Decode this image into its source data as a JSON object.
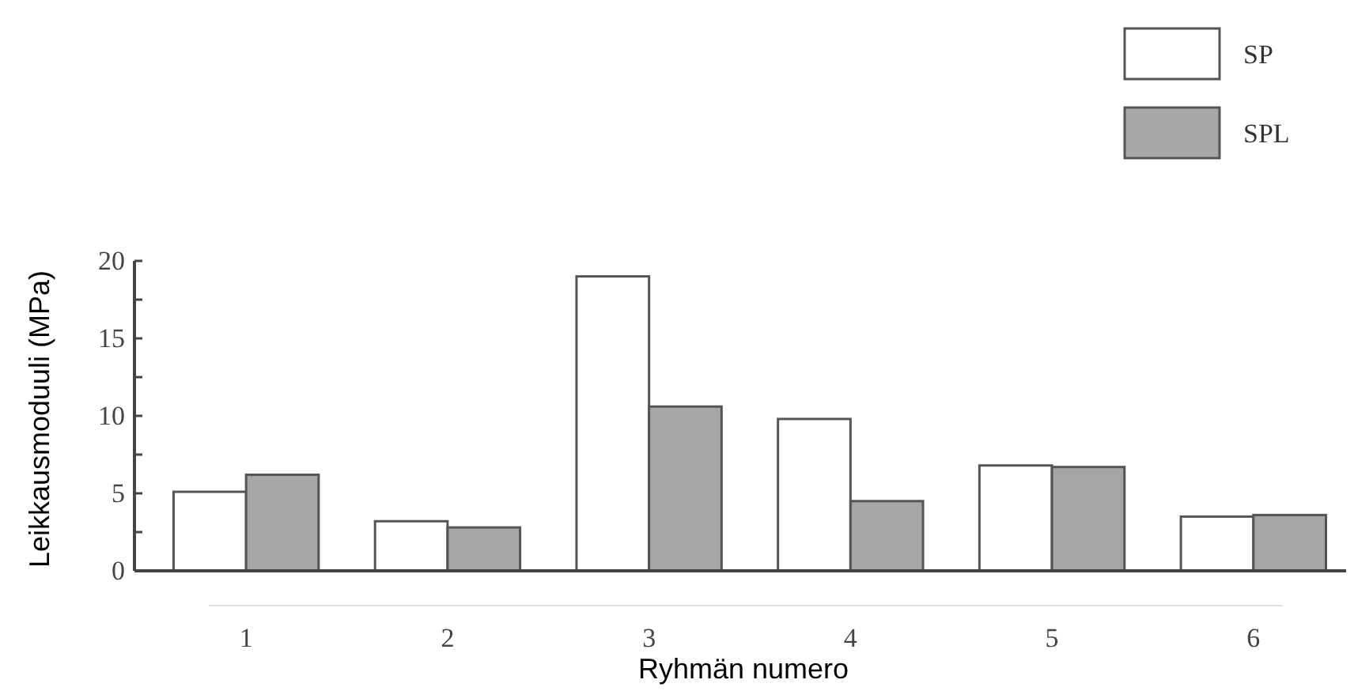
{
  "chart_data": {
    "type": "bar",
    "xlabel": "Ryhmän numero",
    "ylabel": "Leikkausmoduuli (MPa)",
    "categories": [
      "1",
      "2",
      "3",
      "4",
      "5",
      "6"
    ],
    "series": [
      {
        "name": "SP",
        "color": "#ffffff",
        "values": [
          5.1,
          3.2,
          19.0,
          9.8,
          6.8,
          3.5
        ]
      },
      {
        "name": "SPL",
        "color": "#a6a6a6",
        "values": [
          6.2,
          2.8,
          10.6,
          4.5,
          6.7,
          3.6
        ]
      }
    ],
    "ylim": [
      0,
      20
    ],
    "yticks": [
      0,
      {
        "value": 2.5,
        "label": null
      },
      5,
      {
        "value": 7.5,
        "label": null
      },
      10,
      {
        "value": 12.5,
        "label": null
      },
      15,
      {
        "value": 17.5,
        "label": null
      },
      20
    ],
    "grid": false,
    "legend": "top right"
  }
}
